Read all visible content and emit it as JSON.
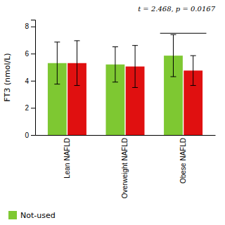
{
  "chart_data": {
    "type": "bar",
    "categories": [
      "Lean NAFLD",
      "Overweight NAFLD",
      "Obese NAFLD"
    ],
    "series": [
      {
        "name": "Not-used",
        "color": "#7ec832",
        "values": [
          5.3,
          5.2,
          5.85
        ],
        "errors": [
          1.55,
          1.3,
          1.55
        ]
      },
      {
        "color": "#e01010",
        "values": [
          5.3,
          5.05,
          4.75
        ],
        "errors": [
          1.65,
          1.55,
          1.1
        ]
      }
    ],
    "ylabel": "FT3 (nmol/L)",
    "ylim": [
      0,
      8.5
    ],
    "yticks": [
      0,
      2,
      4,
      6,
      8
    ],
    "annotation": "t = 2.468, p = 0.0167",
    "bracket_y": 7.5,
    "bracket_category": "Obese NAFLD",
    "legend": "bottom"
  }
}
